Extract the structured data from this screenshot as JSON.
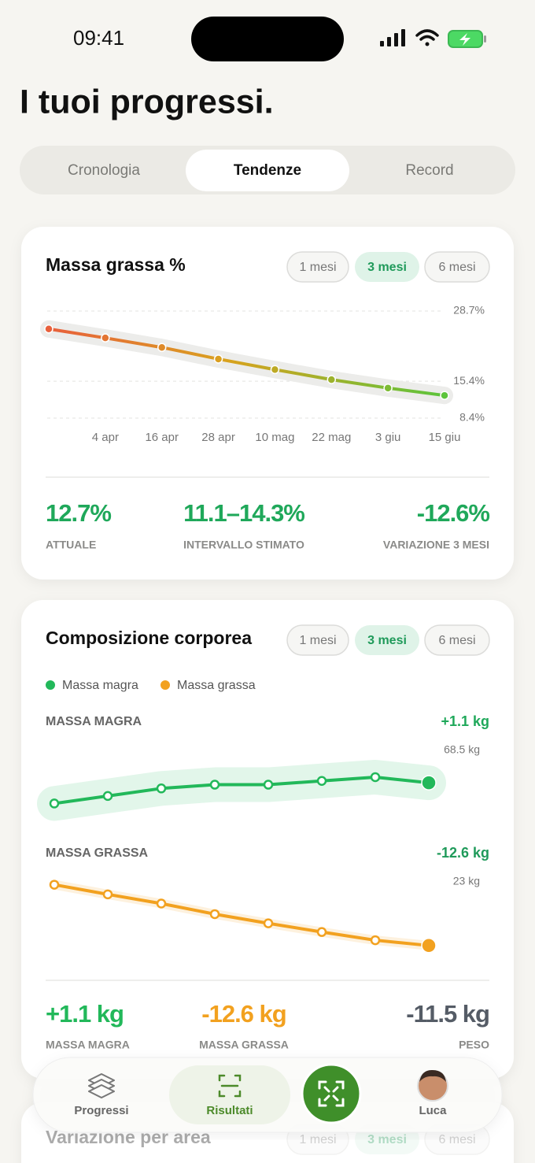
{
  "status": {
    "time": "09:41"
  },
  "header": {
    "title": "I tuoi progressi."
  },
  "tabs": {
    "items": [
      "Cronologia",
      "Tendenze",
      "Record"
    ],
    "active": 1
  },
  "fat_card": {
    "title": "Massa grassa %",
    "periods": [
      "1 mesi",
      "3 mesi",
      "6 mesi"
    ],
    "active_period": 1,
    "chart_data": {
      "type": "line",
      "categories": [
        null,
        "4 apr",
        "16 apr",
        "28 apr",
        "10 mag",
        "22 mag",
        "3 giu",
        "15 giu"
      ],
      "values": [
        25.3,
        23.6,
        21.8,
        19.6,
        17.6,
        15.7,
        14.1,
        12.7
      ],
      "ylim": [
        8.4,
        28.7
      ],
      "yticks": [
        {
          "value": 28.7,
          "label": "28.7%"
        },
        {
          "value": 15.4,
          "label": "15.4%"
        },
        {
          "value": 8.4,
          "label": "8.4%"
        }
      ],
      "grid": true
    },
    "stats": [
      {
        "value": "12.7%",
        "label": "ATTUALE"
      },
      {
        "value": "11.1–14.3%",
        "label": "INTERVALLO STIMATO"
      },
      {
        "value": "-12.6%",
        "label": "VARIAZIONE 3 MESI"
      }
    ]
  },
  "composition_card": {
    "title": "Composizione corporea",
    "periods": [
      "1 mesi",
      "3 mesi",
      "6 mesi"
    ],
    "active_period": 1,
    "chart_data": {
      "type": "line",
      "series": [
        {
          "name": "Massa magra",
          "title": "MASSA MAGRA",
          "change": "+1.1 kg",
          "end_label": "68.5 kg",
          "color": "#22b85a",
          "values": [
            67.4,
            67.8,
            68.2,
            68.4,
            68.4,
            68.6,
            68.8,
            68.5
          ],
          "ylim": [
            67.0,
            69.3
          ]
        },
        {
          "name": "Massa grassa",
          "title": "MASSA GRASSA",
          "change": "-12.6 kg",
          "end_label": "23 kg",
          "color": "#f2a11f",
          "values": [
            35.6,
            33.6,
            31.7,
            29.5,
            27.6,
            25.8,
            24.1,
            23.0
          ],
          "ylim": [
            21.5,
            37.0
          ]
        }
      ]
    },
    "stats": [
      {
        "value": "+1.1 kg",
        "label": "MASSA MAGRA",
        "color": "#22b85a"
      },
      {
        "value": "-12.6 kg",
        "label": "MASSA GRASSA",
        "color": "#f2a11f"
      },
      {
        "value": "-11.5 kg",
        "label": "PESO",
        "color": "#555c66"
      }
    ]
  },
  "next_card": {
    "title": "Variazione per area",
    "periods": [
      "1 mesi",
      "3 mesi",
      "6 mesi"
    ],
    "active_period": 1
  },
  "nav": {
    "items": [
      "Progressi",
      "Risultati",
      "Luca"
    ],
    "active": 1
  }
}
